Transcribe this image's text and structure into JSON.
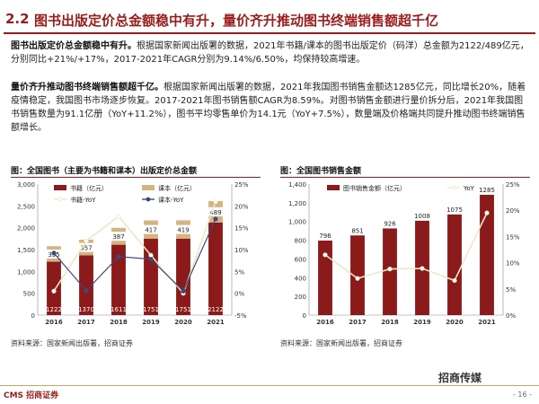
{
  "header": {
    "number": "2.2",
    "title": "图书出版定价总金额稳中有升，量价齐升推动图书终端销售额超千亿"
  },
  "paragraph1": {
    "lead": "图书出版定价总金额稳中有升。",
    "body": "根据国家新闻出版署的数据，2021年书籍/课本的图书出版定价（码洋）总金额为2122/489亿元，分别同比+21%/+17%，2017-2021年CAGR分别为9.14%/6.50%，均保持较高增速。"
  },
  "paragraph2": {
    "lead": "量价齐升推动图书终端销售额超千亿。",
    "body": "根据国家新闻出版署的数据，2021年我国图书销售金额达1285亿元，同比增长20%，随着疫情稳定，我国图书市场逐步恢复。2017-2021年图书销售额CAGR为8.59%。对图书销售金额进行量价拆分后，2021年我国图书销售数量为91.1亿册（YoY+11.2%），图书平均零售单价为14.1元（YoY+7.5%），数量端及价格端共同提升推动图书终端销售额增长。"
  },
  "chart1_title": "图：全国图书（主要为书籍和课本）出版定价总金额",
  "chart2_title": "图：全国图书销售金额",
  "source1": "资料来源：国家新闻出版署，招商证券",
  "source2": "资料来源：国家新闻出版署，招商证券",
  "footer": {
    "logo": "CMS 招商证券",
    "page": "- 16 -",
    "watermark": "招商传媒"
  },
  "colors": {
    "dark_red": "#8b1a1a",
    "tan": "#d4b483",
    "line_white": "#f0e6c8",
    "navy": "#3a4a7a"
  },
  "chart_data": [
    {
      "type": "bar",
      "title": "图：全国图书（主要为书籍和课本）出版定价总金额",
      "categories": [
        "2016",
        "2017",
        "2018",
        "2019",
        "2020",
        "2021"
      ],
      "series": [
        {
          "name": "书籍（亿元）",
          "kind": "bar",
          "values": [
            1222,
            1370,
            1611,
            1751,
            1751,
            2122
          ]
        },
        {
          "name": "课本（亿元）",
          "kind": "bar",
          "values": [
            355,
            357,
            387,
            417,
            419,
            489
          ]
        },
        {
          "name": "书籍-YoY",
          "kind": "line",
          "axis": "right",
          "values": [
            0.5,
            12,
            17.6,
            8.7,
            0,
            21
          ]
        },
        {
          "name": "课本-YoY",
          "kind": "line",
          "axis": "right",
          "values": [
            9.2,
            0.6,
            8.4,
            7.8,
            0.5,
            17
          ]
        }
      ],
      "ylim": [
        0,
        3000
      ],
      "yticks": [
        "0",
        "500",
        "1,000",
        "1,500",
        "2,000",
        "2,500",
        "3,000"
      ],
      "y2lim": [
        -5,
        25
      ],
      "y2ticks": [
        "-5%",
        "0%",
        "5%",
        "10%",
        "15%",
        "20%",
        "25%"
      ]
    },
    {
      "type": "bar",
      "title": "图：全国图书销售金额",
      "categories": [
        "2016",
        "2017",
        "2018",
        "2019",
        "2020",
        "2021"
      ],
      "series": [
        {
          "name": "图书销售金额（亿元）",
          "kind": "bar",
          "values": [
            796,
            851,
            926,
            1008,
            1075,
            1285
          ]
        },
        {
          "name": "YoY",
          "kind": "line",
          "axis": "right",
          "values": [
            11.5,
            7,
            8.8,
            8.9,
            6.6,
            19.5
          ]
        }
      ],
      "ylim": [
        0,
        1400
      ],
      "yticks": [
        "0",
        "200",
        "400",
        "600",
        "800",
        "1,000",
        "1,200",
        "1,400"
      ],
      "y2lim": [
        0,
        25
      ],
      "y2ticks": [
        "0%",
        "5%",
        "10%",
        "15%",
        "20%",
        "25%"
      ]
    }
  ]
}
